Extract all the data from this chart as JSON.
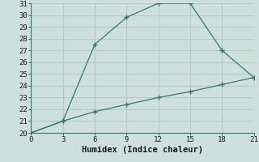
{
  "line1_x": [
    0,
    3,
    6,
    9,
    12,
    15,
    18,
    21
  ],
  "line1_y": [
    20,
    21,
    27.5,
    29.8,
    31,
    31,
    27,
    24.7
  ],
  "line2_x": [
    0,
    3,
    6,
    9,
    12,
    15,
    18,
    21
  ],
  "line2_y": [
    20,
    21,
    21.8,
    22.4,
    23.0,
    23.5,
    24.1,
    24.7
  ],
  "color": "#2d7b71",
  "bg_color": "#cde0dc",
  "grid_color": "#b0cbc7",
  "xlabel": "Humidex (Indice chaleur)",
  "xlim": [
    0,
    21
  ],
  "ylim": [
    20,
    31
  ],
  "xticks": [
    0,
    3,
    6,
    9,
    12,
    15,
    18,
    21
  ],
  "yticks": [
    20,
    21,
    22,
    23,
    24,
    25,
    26,
    27,
    28,
    29,
    30,
    31
  ],
  "xlabel_fontsize": 7.5,
  "tick_fontsize": 6.5,
  "marker": "+"
}
